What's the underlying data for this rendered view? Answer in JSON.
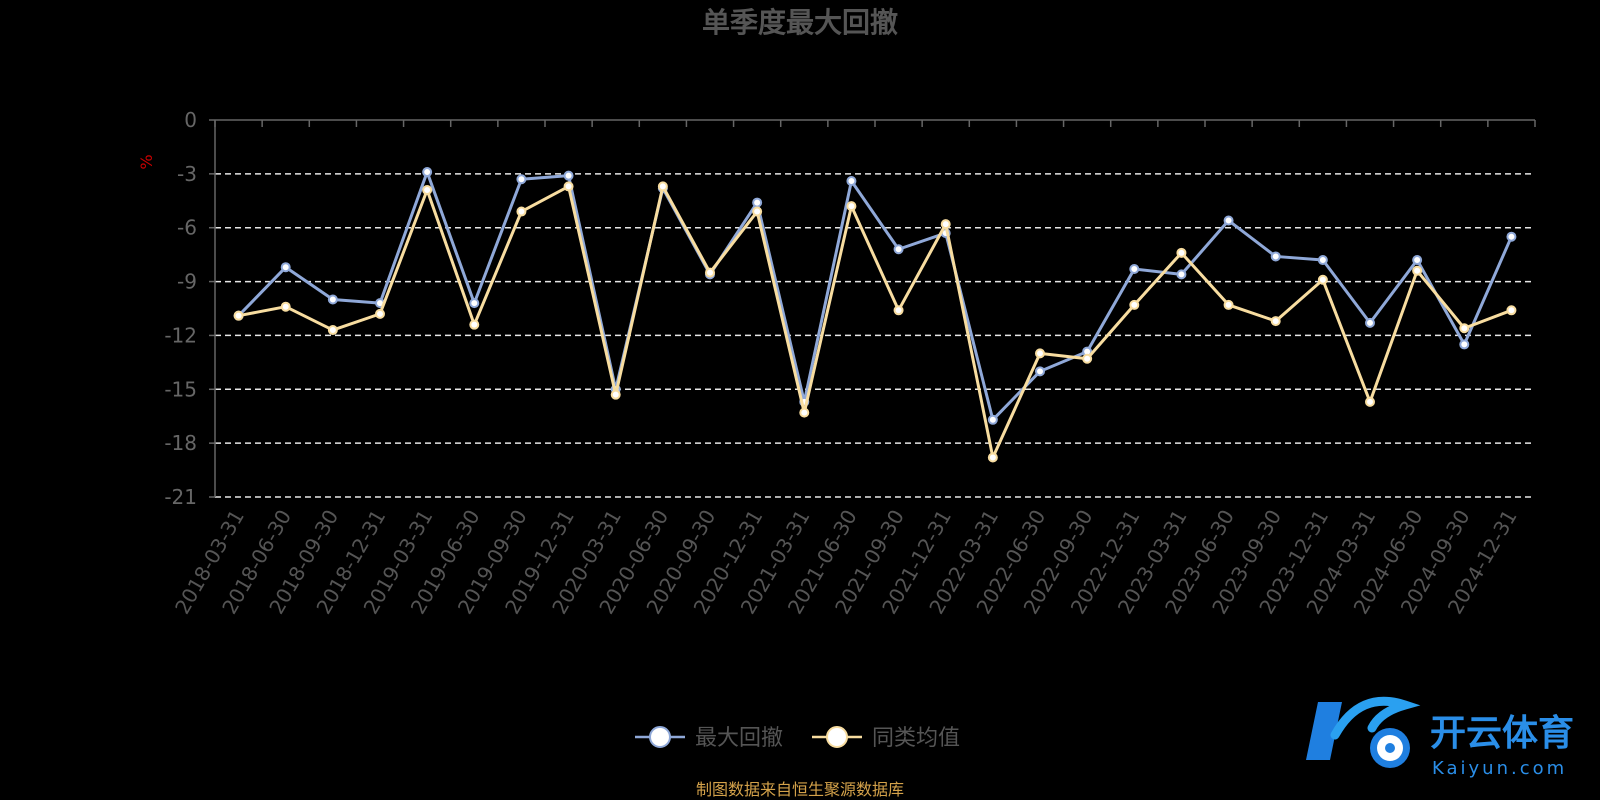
{
  "chart_data": {
    "type": "line",
    "title": "单季度最大回撤",
    "ylabel": "%",
    "ylim": [
      -21,
      0
    ],
    "yticks": [
      0,
      -3,
      -6,
      -9,
      -12,
      -15,
      -18,
      -21
    ],
    "grid": true,
    "legend_position": "bottom",
    "categories": [
      "2018-03-31",
      "2018-06-30",
      "2018-09-30",
      "2018-12-31",
      "2019-03-31",
      "2019-06-30",
      "2019-09-30",
      "2019-12-31",
      "2020-03-31",
      "2020-06-30",
      "2020-09-30",
      "2020-12-31",
      "2021-03-31",
      "2021-06-30",
      "2021-09-30",
      "2021-12-31",
      "2022-03-31",
      "2022-06-30",
      "2022-09-30",
      "2022-12-31",
      "2023-03-31",
      "2023-06-30",
      "2023-09-30",
      "2023-12-31",
      "2024-03-31",
      "2024-06-30",
      "2024-09-30",
      "2024-12-31"
    ],
    "series": [
      {
        "name": "最大回撤",
        "color": "#8fa8d8",
        "values": [
          -10.9,
          -8.2,
          -10.0,
          -10.2,
          -2.9,
          -10.2,
          -3.3,
          -3.1,
          -15.0,
          -3.8,
          -8.6,
          -4.6,
          -15.7,
          -3.4,
          -7.2,
          -6.3,
          -16.7,
          -14.0,
          -12.9,
          -8.3,
          -8.6,
          -5.6,
          -7.6,
          -7.8,
          -11.3,
          -7.8,
          -12.5,
          -6.5
        ]
      },
      {
        "name": "同类均值",
        "color": "#f8dda0",
        "values": [
          -10.9,
          -10.4,
          -11.7,
          -10.8,
          -3.9,
          -11.4,
          -5.1,
          -3.7,
          -15.3,
          -3.7,
          -8.5,
          -5.1,
          -16.3,
          -4.8,
          -10.6,
          -5.8,
          -18.8,
          -13.0,
          -13.3,
          -10.3,
          -7.4,
          -10.3,
          -11.2,
          -8.9,
          -15.7,
          -8.4,
          -11.6,
          -10.6
        ]
      }
    ]
  },
  "footer": {
    "source": "制图数据来自恒生聚源数据库"
  },
  "watermark": {
    "name_cn": "开云体育",
    "name_en": "Kaiyun.com",
    "icon": "k-soccer-logo-icon"
  }
}
